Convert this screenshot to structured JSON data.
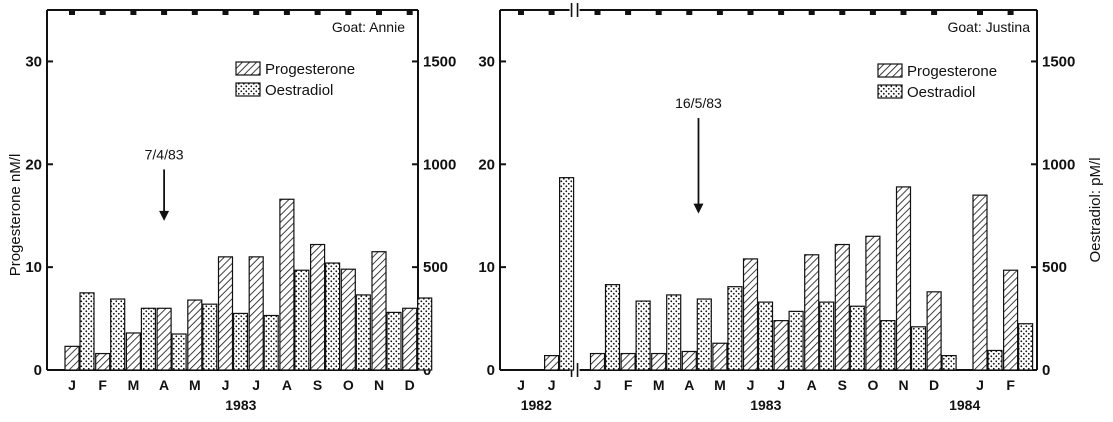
{
  "figure": {
    "left_ylabel": "Progesterone nM/l",
    "right_ylabel": "Oestradiol: pM/l"
  },
  "chart_data": [
    {
      "type": "bar",
      "goat_label": "Goat: Annie",
      "categories": [
        "J",
        "F",
        "M",
        "A",
        "M",
        "J",
        "J",
        "A",
        "S",
        "O",
        "N",
        "D"
      ],
      "year_labels": [
        {
          "text": "1983",
          "under_index": 5.5
        }
      ],
      "series": [
        {
          "name": "Progesterone",
          "axis": "left",
          "pattern": "hatch",
          "values": [
            2.3,
            1.6,
            3.6,
            6.0,
            6.8,
            11.0,
            11.0,
            16.6,
            12.2,
            9.8,
            11.5,
            6.0
          ]
        },
        {
          "name": "Oestradiol",
          "axis": "right",
          "pattern": "dots",
          "values": [
            375,
            345,
            300,
            175,
            320,
            275,
            265,
            485,
            520,
            365,
            280,
            350
          ]
        }
      ],
      "left_axis": {
        "ylim": [
          0,
          35
        ],
        "ticks": [
          0,
          10,
          20,
          30
        ],
        "tick_labels": [
          "0",
          "10",
          "20",
          "30"
        ]
      },
      "right_axis": {
        "ylim": [
          0,
          1750
        ],
        "ticks": [
          0,
          500,
          1000,
          1500
        ],
        "tick_labels": [
          "0",
          "500",
          "1000",
          "1500"
        ]
      },
      "annotation": {
        "text": "7/4/83",
        "at_index": 3,
        "arrow_tip_value": 14.5,
        "arrow_top_value": 19.5
      },
      "legend": {
        "placement": "top-right",
        "entries": [
          "Progesterone",
          "Oestradiol"
        ]
      },
      "top_ticks": true
    },
    {
      "type": "bar",
      "goat_label": "Goat: Justina",
      "categories": [
        "J",
        "J",
        "J",
        "F",
        "M",
        "A",
        "M",
        "J",
        "J",
        "A",
        "S",
        "O",
        "N",
        "D",
        "J",
        "F"
      ],
      "slot_positions": [
        0,
        1,
        2.5,
        3.5,
        4.5,
        5.5,
        6.5,
        7.5,
        8.5,
        9.5,
        10.5,
        11.5,
        12.5,
        13.5,
        15,
        16
      ],
      "axis_break_after_index": 1,
      "year_labels": [
        {
          "text": "1982",
          "under_index": 0.5
        },
        {
          "text": "1983",
          "under_index": 8
        },
        {
          "text": "1984",
          "under_index": 14.5
        }
      ],
      "series": [
        {
          "name": "Progesterone",
          "axis": "left",
          "pattern": "hatch",
          "values": [
            null,
            1.4,
            1.6,
            1.6,
            1.6,
            1.8,
            2.6,
            10.8,
            4.8,
            11.2,
            12.2,
            13.0,
            17.8,
            7.6,
            17.0,
            9.7
          ]
        },
        {
          "name": "Oestradiol",
          "axis": "right",
          "pattern": "dots",
          "values": [
            null,
            935,
            415,
            335,
            365,
            345,
            405,
            330,
            285,
            330,
            310,
            240,
            210,
            70,
            95,
            225
          ]
        }
      ],
      "left_axis": {
        "ylim": [
          0,
          35
        ],
        "ticks": [
          0,
          10,
          20,
          30
        ],
        "tick_labels": [
          "0",
          "10",
          "20",
          "30"
        ]
      },
      "right_axis": {
        "ylim": [
          0,
          1750
        ],
        "ticks": [
          0,
          500,
          1000,
          1500
        ],
        "tick_labels": [
          "0",
          "500",
          "1000",
          "1500"
        ]
      },
      "annotation": {
        "text": "16/5/83",
        "at_index": 5.8,
        "arrow_tip_value": 15.2,
        "arrow_top_value": 24.5
      },
      "legend": {
        "placement": "top-right",
        "entries": [
          "Progesterone",
          "Oestradiol"
        ]
      },
      "top_ticks": true
    }
  ]
}
